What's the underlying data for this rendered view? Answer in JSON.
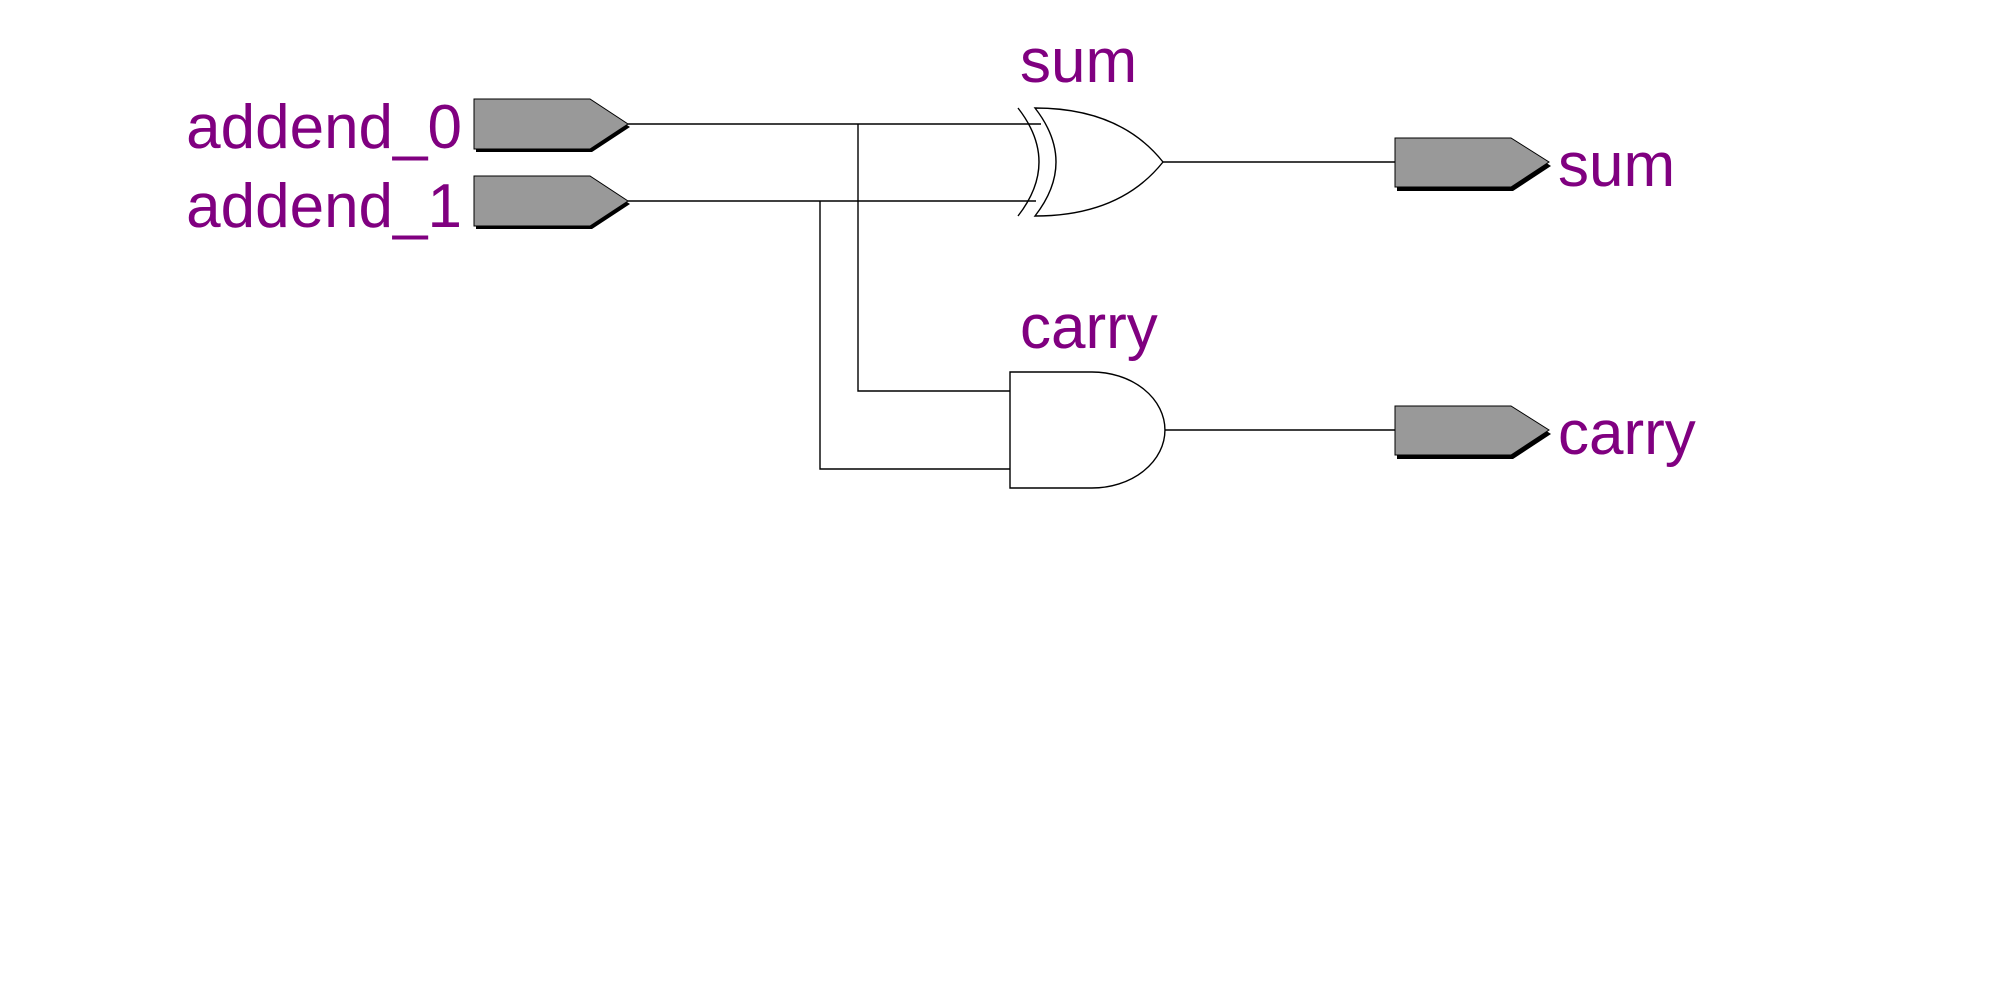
{
  "colors": {
    "label": "#800080",
    "port_fill": "#999999",
    "wire": "#000000",
    "background": "#ffffff"
  },
  "inputs": [
    {
      "id": "addend_0",
      "label": "addend_0"
    },
    {
      "id": "addend_1",
      "label": "addend_1"
    }
  ],
  "gates": [
    {
      "id": "xor",
      "type": "xor",
      "label": "sum"
    },
    {
      "id": "and",
      "type": "and",
      "label": "carry"
    }
  ],
  "outputs": [
    {
      "id": "sum",
      "label": "sum"
    },
    {
      "id": "carry",
      "label": "carry"
    }
  ]
}
